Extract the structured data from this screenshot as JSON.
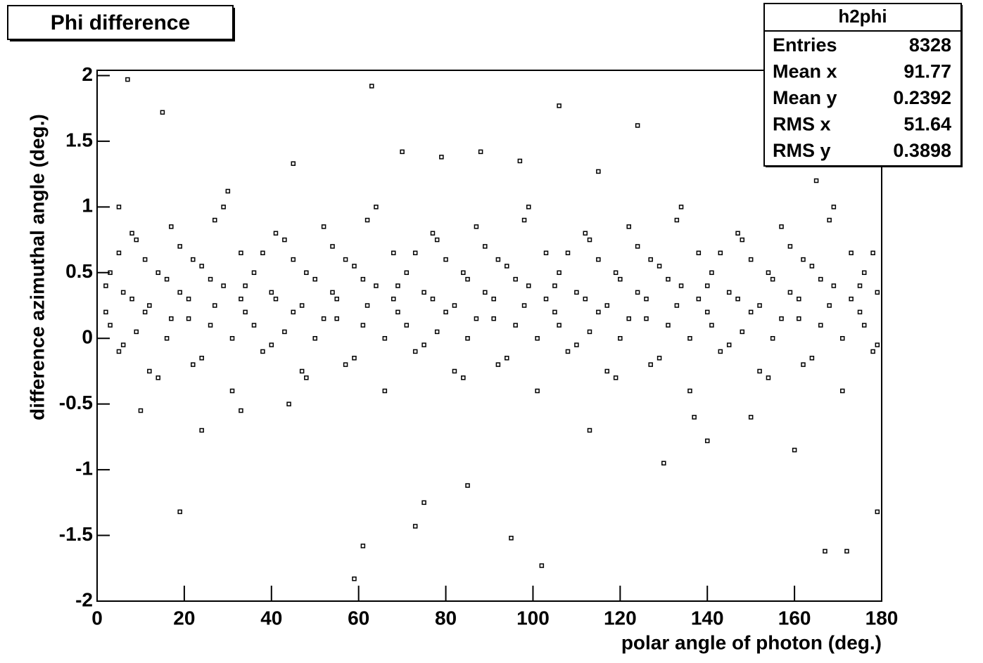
{
  "chart_data": {
    "type": "scatter",
    "title": "Phi difference",
    "x_label": "polar angle of photon (deg.)",
    "y_label": "difference azimuthal angle (deg.)",
    "color": "#000000",
    "xlim": [
      0,
      180
    ],
    "ylim": [
      -2,
      2.04
    ],
    "xticks": [
      0,
      20,
      40,
      60,
      80,
      100,
      120,
      140,
      160,
      180
    ],
    "yticks": [
      -2,
      -1.5,
      -1,
      -0.5,
      0,
      0.5,
      1,
      1.5,
      2
    ],
    "stats": {
      "title": "h2phi",
      "rows": [
        [
          "Entries",
          8328
        ],
        [
          "Mean x",
          91.77
        ],
        [
          "Mean y",
          0.2392
        ],
        [
          "RMS x",
          51.64
        ],
        [
          "RMS y",
          0.3898
        ]
      ]
    },
    "x": [
      2,
      3,
      5,
      6,
      8,
      9,
      11,
      12,
      14,
      16,
      17,
      19,
      21,
      22,
      24,
      26,
      27,
      29,
      31,
      33,
      34,
      36,
      38,
      40,
      41,
      43,
      45,
      47,
      48,
      50,
      52,
      54,
      55,
      57,
      59,
      61,
      62,
      64,
      66,
      68,
      69,
      71,
      73,
      75,
      77,
      78,
      80,
      82,
      84,
      85,
      87,
      89,
      91,
      92,
      94,
      96,
      98,
      99,
      101,
      103,
      105,
      106,
      108,
      110,
      112,
      113,
      115,
      117,
      119,
      120,
      122,
      124,
      126,
      127,
      129,
      131,
      133,
      134,
      136,
      138,
      140,
      141,
      143,
      145,
      147,
      148,
      150,
      152,
      154,
      155,
      157,
      159,
      161,
      162,
      164,
      166,
      168,
      169,
      171,
      173,
      175,
      176,
      178,
      179,
      2,
      3,
      5,
      6,
      8,
      9,
      11,
      12,
      14,
      16,
      17,
      19,
      21,
      22,
      24,
      26,
      27,
      29,
      31,
      33,
      34,
      36,
      38,
      40,
      41,
      43,
      45,
      47,
      48,
      50,
      52,
      54,
      55,
      57,
      59,
      61,
      62,
      64,
      66,
      68,
      69,
      71,
      73,
      75,
      77,
      78,
      80,
      82,
      84,
      85,
      87,
      89,
      91,
      92,
      94,
      96,
      98,
      99,
      101,
      103,
      105,
      106,
      108,
      110,
      112,
      113,
      115,
      117,
      119,
      120,
      122,
      124,
      126,
      127,
      129,
      131,
      133,
      134,
      136,
      138,
      140,
      141,
      143,
      145,
      147,
      148,
      150,
      152,
      154,
      155,
      157,
      159,
      161,
      162,
      164,
      166,
      168,
      169,
      171,
      173,
      175,
      176,
      178,
      179,
      7,
      15,
      63,
      106,
      124,
      59,
      102,
      61,
      95,
      19,
      167,
      172,
      179,
      75,
      73,
      10,
      24,
      33,
      44,
      70,
      79,
      88,
      97,
      113,
      130,
      137,
      150,
      160,
      165,
      5,
      45,
      85,
      115,
      140,
      30
    ],
    "values": [
      0.2,
      0.5,
      -0.1,
      0.35,
      0.8,
      0.05,
      0.6,
      0.25,
      -0.3,
      0.45,
      0.15,
      0.7,
      0.3,
      -0.2,
      0.55,
      0.1,
      0.9,
      0.4,
      0.0,
      0.65,
      0.2,
      0.5,
      -0.1,
      0.35,
      0.8,
      0.05,
      0.6,
      0.25,
      -0.3,
      0.45,
      0.15,
      0.7,
      0.3,
      -0.2,
      0.55,
      0.1,
      0.9,
      0.4,
      0.0,
      0.65,
      0.2,
      0.5,
      -0.1,
      0.35,
      0.8,
      0.05,
      0.6,
      0.25,
      -0.3,
      0.45,
      0.15,
      0.7,
      0.3,
      -0.2,
      0.55,
      0.1,
      0.9,
      0.4,
      0.0,
      0.65,
      0.2,
      0.5,
      -0.1,
      0.35,
      0.8,
      0.05,
      0.6,
      0.25,
      -0.3,
      0.45,
      0.15,
      0.7,
      0.3,
      -0.2,
      0.55,
      0.1,
      0.9,
      0.4,
      0.0,
      0.65,
      0.2,
      0.5,
      -0.1,
      0.35,
      0.8,
      0.05,
      0.6,
      0.25,
      -0.3,
      0.45,
      0.15,
      0.7,
      0.3,
      -0.2,
      0.55,
      0.1,
      0.9,
      0.4,
      0.0,
      0.65,
      0.2,
      0.5,
      -0.1,
      0.35,
      0.4,
      0.1,
      0.65,
      -0.05,
      0.3,
      0.75,
      0.2,
      -0.25,
      0.5,
      0.0,
      0.85,
      0.35,
      0.15,
      0.6,
      -0.15,
      0.45,
      0.25,
      1.0,
      -0.4,
      0.3,
      0.4,
      0.1,
      0.65,
      -0.05,
      0.3,
      0.75,
      0.2,
      -0.25,
      0.5,
      0.0,
      0.85,
      0.35,
      0.15,
      0.6,
      -0.15,
      0.45,
      0.25,
      1.0,
      -0.4,
      0.3,
      0.4,
      0.1,
      0.65,
      -0.05,
      0.3,
      0.75,
      0.2,
      -0.25,
      0.5,
      0.0,
      0.85,
      0.35,
      0.15,
      0.6,
      -0.15,
      0.45,
      0.25,
      1.0,
      -0.4,
      0.3,
      0.4,
      0.1,
      0.65,
      -0.05,
      0.3,
      0.75,
      0.2,
      -0.25,
      0.5,
      0.0,
      0.85,
      0.35,
      0.15,
      0.6,
      -0.15,
      0.45,
      0.25,
      1.0,
      -0.4,
      0.3,
      0.4,
      0.1,
      0.65,
      -0.05,
      0.3,
      0.75,
      0.2,
      -0.25,
      0.5,
      0.0,
      0.85,
      0.35,
      0.15,
      0.6,
      -0.15,
      0.45,
      0.25,
      1.0,
      -0.4,
      0.3,
      0.4,
      0.1,
      0.65,
      -0.05,
      1.97,
      1.72,
      1.92,
      1.77,
      1.62,
      -1.83,
      -1.73,
      -1.58,
      -1.52,
      -1.32,
      -1.62,
      -1.62,
      -1.32,
      -1.25,
      -1.43,
      -0.55,
      -0.7,
      -0.55,
      -0.5,
      1.42,
      1.38,
      1.42,
      1.35,
      -0.7,
      -0.95,
      -0.6,
      -0.6,
      -0.85,
      1.2,
      1.0,
      1.33,
      -1.12,
      1.27,
      -0.78,
      1.12
    ]
  }
}
